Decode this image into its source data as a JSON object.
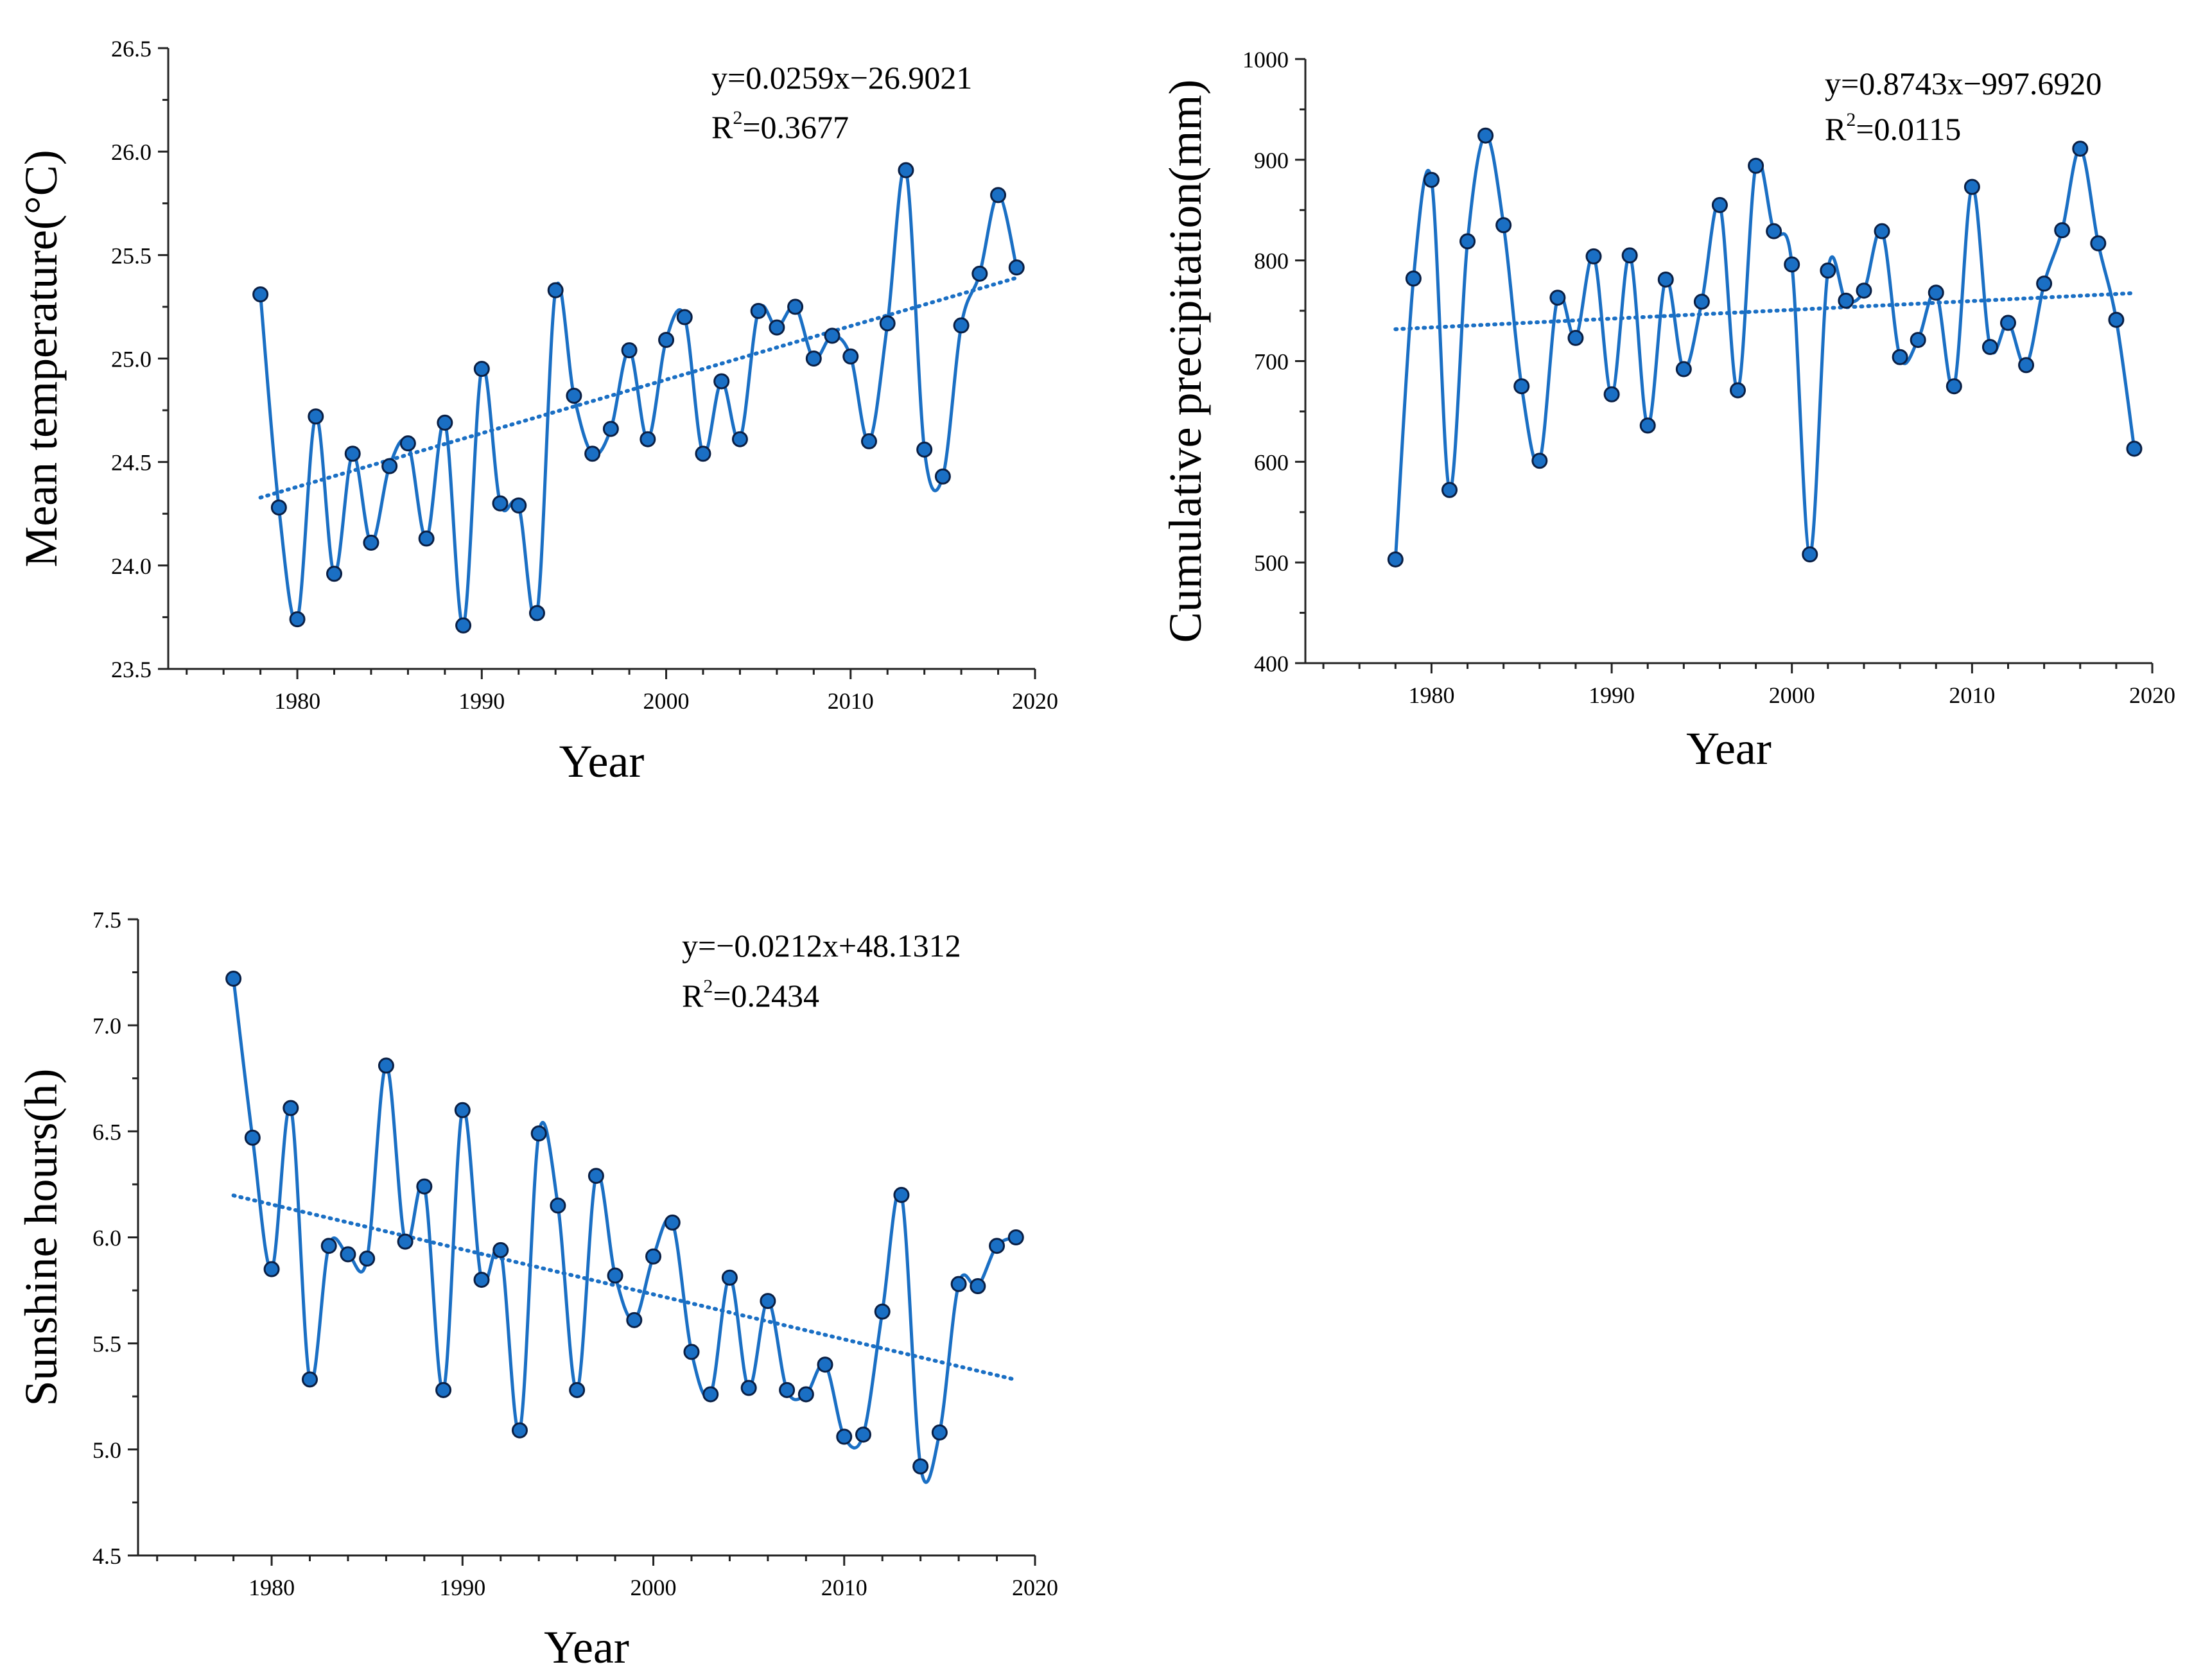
{
  "colors": {
    "series_line": "#1a6fc4",
    "marker_fill": "#1a6fc4",
    "marker_stroke": "#0a1f44",
    "trend_line": "#1a6fc4",
    "axis": "#222222"
  },
  "chart_data": [
    {
      "type": "line",
      "panel": "mean-temperature",
      "xlabel": "Year",
      "ylabel": "Mean temperature(°C)",
      "xlim": [
        1973,
        2020
      ],
      "ylim": [
        23.5,
        26.5
      ],
      "x_ticks": [
        1980,
        1990,
        2000,
        2010,
        2020
      ],
      "x_tick_labels": [
        "1980",
        "1990",
        "2000",
        "2010",
        "2020"
      ],
      "y_ticks": [
        23.5,
        24.0,
        24.5,
        25.0,
        25.5,
        26.0,
        26.5
      ],
      "y_tick_labels": [
        "23.5",
        "24.0",
        "24.5",
        "25.0",
        "25.5",
        "26.0",
        "26.5"
      ],
      "equation": "y=0.0259x−26.9021",
      "r2_label": "R",
      "r2_sup": "2",
      "r2_value": "=0.3677",
      "trend": {
        "slope": 0.0259,
        "intercept": -26.9021,
        "x_range": [
          1978,
          2019
        ]
      },
      "grid": false,
      "x": [
        1978,
        1979,
        1980,
        1981,
        1982,
        1983,
        1984,
        1985,
        1986,
        1987,
        1988,
        1989,
        1990,
        1991,
        1992,
        1993,
        1994,
        1995,
        1996,
        1997,
        1998,
        1999,
        2000,
        2001,
        2002,
        2003,
        2004,
        2005,
        2006,
        2007,
        2008,
        2009,
        2010,
        2011,
        2012,
        2013,
        2014,
        2015,
        2016,
        2017,
        2018,
        2019
      ],
      "y": [
        25.31,
        24.28,
        23.74,
        24.72,
        23.96,
        24.54,
        24.11,
        24.48,
        24.59,
        24.13,
        24.69,
        23.71,
        24.95,
        24.3,
        24.29,
        23.77,
        25.33,
        24.82,
        24.54,
        24.66,
        25.04,
        24.61,
        25.09,
        25.2,
        24.54,
        24.89,
        24.61,
        25.23,
        25.15,
        25.25,
        25.0,
        25.11,
        25.01,
        24.6,
        25.17,
        25.91,
        24.56,
        24.43,
        25.16,
        25.41,
        25.79,
        25.44
      ]
    },
    {
      "type": "line",
      "panel": "cumulative-precipitation",
      "xlabel": "Year",
      "ylabel": "Cumulative precipitation(mm)",
      "xlim": [
        1973,
        2020
      ],
      "ylim": [
        400,
        1000
      ],
      "x_ticks": [
        1980,
        1990,
        2000,
        2010,
        2020
      ],
      "x_tick_labels": [
        "1980",
        "1990",
        "2000",
        "2010",
        "2020"
      ],
      "y_ticks": [
        400,
        500,
        600,
        700,
        800,
        900,
        1000
      ],
      "y_tick_labels": [
        "400",
        "500",
        "600",
        "700",
        "800",
        "900",
        "1000"
      ],
      "equation": "y=0.8743x−997.6920",
      "r2_label": "R",
      "r2_sup": "2",
      "r2_value": "=0.0115",
      "trend": {
        "slope": 0.8743,
        "intercept": -997.692,
        "x_range": [
          1978,
          2019
        ]
      },
      "grid": false,
      "x": [
        1978,
        1979,
        1980,
        1981,
        1982,
        1983,
        1984,
        1985,
        1986,
        1987,
        1988,
        1989,
        1990,
        1991,
        1992,
        1993,
        1994,
        1995,
        1996,
        1997,
        1998,
        1999,
        2000,
        2001,
        2002,
        2003,
        2004,
        2005,
        2006,
        2007,
        2008,
        2009,
        2010,
        2011,
        2012,
        2013,
        2014,
        2015,
        2016,
        2017,
        2018,
        2019
      ],
      "y": [
        503,
        782,
        880,
        572,
        819,
        924,
        835,
        675,
        601,
        763,
        723,
        804,
        667,
        805,
        636,
        781,
        692,
        759,
        855,
        671,
        894,
        829,
        796,
        508,
        790,
        760,
        770,
        829,
        704,
        721,
        768,
        675,
        873,
        714,
        738,
        696,
        777,
        830,
        911,
        817,
        741,
        613
      ]
    },
    {
      "type": "line",
      "panel": "sunshine-hours",
      "xlabel": "Year",
      "ylabel": "Sunshine hours(h)",
      "xlim": [
        1973,
        2020
      ],
      "ylim": [
        4.5,
        7.5
      ],
      "x_ticks": [
        1980,
        1990,
        2000,
        2010,
        2020
      ],
      "x_tick_labels": [
        "1980",
        "1990",
        "2000",
        "2010",
        "2020"
      ],
      "y_ticks": [
        4.5,
        5.0,
        5.5,
        6.0,
        6.5,
        7.0,
        7.5
      ],
      "y_tick_labels": [
        "4.5",
        "5.0",
        "5.5",
        "6.0",
        "6.5",
        "7.0",
        "7.5"
      ],
      "equation": "y=−0.0212x+48.1312",
      "r2_label": "R",
      "r2_sup": "2",
      "r2_value": "=0.2434",
      "trend": {
        "slope": -0.0212,
        "intercept": 48.1312,
        "x_range": [
          1978,
          2019
        ]
      },
      "grid": false,
      "x": [
        1978,
        1979,
        1980,
        1981,
        1982,
        1983,
        1984,
        1985,
        1986,
        1987,
        1988,
        1989,
        1990,
        1991,
        1992,
        1993,
        1994,
        1995,
        1996,
        1997,
        1998,
        1999,
        2000,
        2001,
        2002,
        2003,
        2004,
        2005,
        2006,
        2007,
        2008,
        2009,
        2010,
        2011,
        2012,
        2013,
        2014,
        2015,
        2016,
        2017,
        2018,
        2019
      ],
      "y": [
        7.22,
        6.47,
        5.85,
        6.61,
        5.33,
        5.96,
        5.92,
        5.9,
        6.81,
        5.98,
        6.24,
        5.28,
        6.6,
        5.8,
        5.94,
        5.09,
        6.49,
        6.15,
        5.28,
        6.29,
        5.82,
        5.61,
        5.91,
        6.07,
        5.46,
        5.26,
        5.81,
        5.29,
        5.7,
        5.28,
        5.26,
        5.4,
        5.06,
        5.07,
        5.65,
        6.2,
        4.92,
        5.08,
        5.78,
        5.77,
        5.96,
        6.0
      ]
    }
  ]
}
